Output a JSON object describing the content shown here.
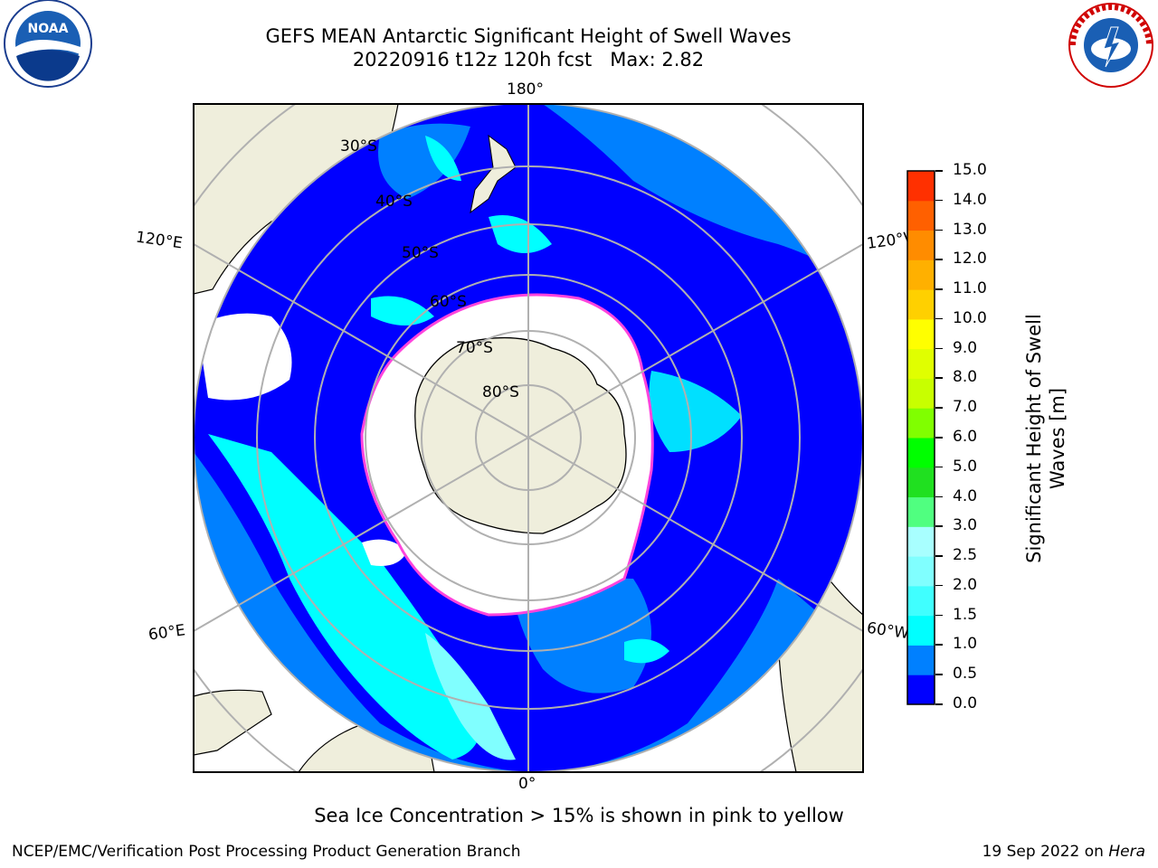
{
  "title": {
    "line1": "GEFS MEAN Antarctic Significant Height of Swell Waves",
    "line2": "20220916 t12z 120h fcst   Max: 2.82"
  },
  "map": {
    "projection": "south-polar-stereographic",
    "lon_labels": {
      "top": "180°",
      "upper_left": "120°E",
      "upper_right": "120°W",
      "lower_left": "60°E",
      "lower_right": "60°W",
      "bottom": "0°"
    },
    "lat_labels": [
      "30°S",
      "40°S",
      "50°S",
      "60°S",
      "70°S",
      "80°S"
    ],
    "colors": {
      "ocean_low": "#0000ff",
      "ocean_mid": "#0080ff",
      "ocean_high": "#00ffff",
      "land": "#efeedc",
      "ice": "#ffffff",
      "ice_edge": "#ff44dd",
      "gridline": "#b0b0b0"
    }
  },
  "colorbar": {
    "label": "Significant Height of Swell Waves [m]",
    "ticks": [
      "0.0",
      "0.5",
      "1.0",
      "1.5",
      "2.0",
      "2.5",
      "3.0",
      "4.0",
      "5.0",
      "6.0",
      "7.0",
      "8.0",
      "9.0",
      "10.0",
      "11.0",
      "12.0",
      "13.0",
      "14.0",
      "15.0"
    ],
    "colors": [
      "#0000ff",
      "#0080ff",
      "#00ffff",
      "#40ffff",
      "#80ffff",
      "#a8ffff",
      "#50ff80",
      "#20e020",
      "#00ff00",
      "#80ff00",
      "#c8ff00",
      "#e0ff00",
      "#ffff00",
      "#ffd000",
      "#ffb000",
      "#ff8c00",
      "#ff6000",
      "#ff3000",
      "#ff0000"
    ]
  },
  "caption": "Sea Ice Concentration > 15% is shown in pink to yellow",
  "footer": {
    "left": "NCEP/EMC/Verification Post Processing Product Generation Branch",
    "date": "19 Sep 2022 on ",
    "host": "Hera"
  },
  "logos": {
    "noaa": "NOAA",
    "nws": "NATIONAL WEATHER SERVICE"
  }
}
